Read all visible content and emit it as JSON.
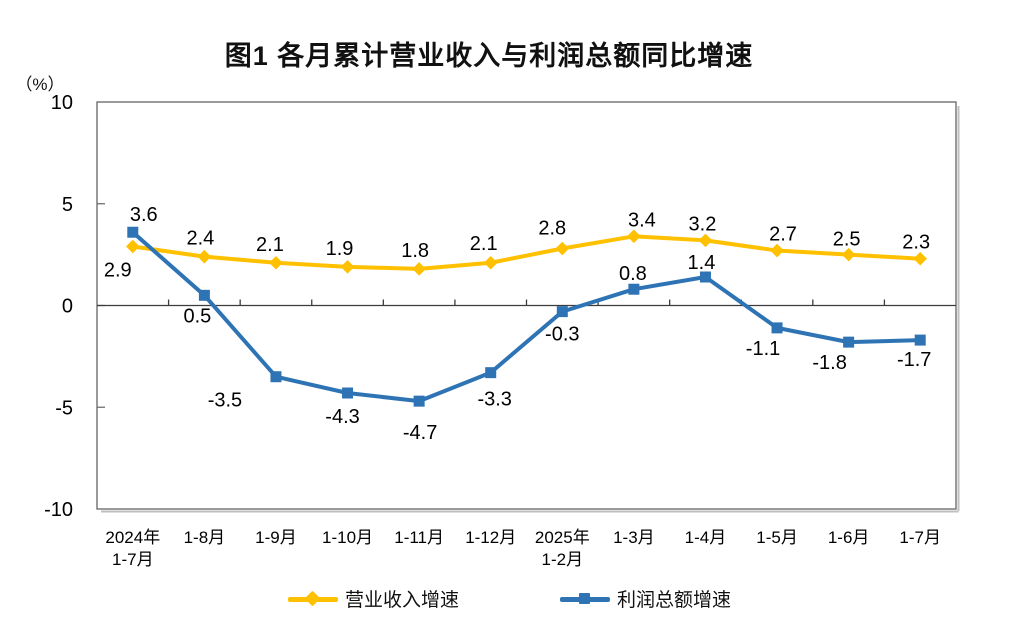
{
  "title": "图1 各月累计营业收入与利润总额同比增速",
  "chart_data": {
    "type": "line",
    "title": "图1 各月累计营业收入与利润总额同比增速",
    "unit": "（%）",
    "categories": [
      "2024年\n1-7月",
      "1-8月",
      "1-9月",
      "1-10月",
      "1-11月",
      "1-12月",
      "2025年\n1-2月",
      "1-3月",
      "1-4月",
      "1-5月",
      "1-6月",
      "1-7月"
    ],
    "y_axis": {
      "min": -10,
      "max": 10,
      "step": 5,
      "ticks": [
        10,
        5,
        0,
        -5,
        -10
      ]
    },
    "gridlines": false,
    "zero_baseline": true,
    "legend_position": "bottom",
    "series": [
      {
        "name": "营业收入增速",
        "color": "#FFC000",
        "marker": "diamond",
        "values": [
          2.9,
          2.4,
          2.1,
          1.9,
          1.8,
          2.1,
          2.8,
          3.4,
          3.2,
          2.7,
          2.5,
          2.3
        ],
        "label_offsets": [
          [
            -15,
            30
          ],
          [
            -4,
            -12
          ],
          [
            -6,
            -12
          ],
          [
            -8,
            -12
          ],
          [
            -4,
            -12
          ],
          [
            -7,
            -13
          ],
          [
            -10,
            -14
          ],
          [
            8,
            -10
          ],
          [
            -3,
            -10
          ],
          [
            6,
            -10
          ],
          [
            -2,
            -9
          ],
          [
            -4,
            -10
          ]
        ]
      },
      {
        "name": "利润总额增速",
        "color": "#2E74B5",
        "marker": "square",
        "values": [
          3.6,
          0.5,
          -3.5,
          -4.3,
          -4.7,
          -3.3,
          -0.3,
          0.8,
          1.4,
          -1.1,
          -1.8,
          -1.7
        ],
        "label_offsets": [
          [
            11,
            -11
          ],
          [
            -7,
            27
          ],
          [
            -51,
            30
          ],
          [
            -5,
            30
          ],
          [
            1,
            38
          ],
          [
            4,
            33
          ],
          [
            0,
            29
          ],
          [
            -1,
            -9
          ],
          [
            -4,
            -8
          ],
          [
            -14,
            27
          ],
          [
            -19,
            27
          ],
          [
            -6,
            26
          ]
        ]
      }
    ]
  }
}
